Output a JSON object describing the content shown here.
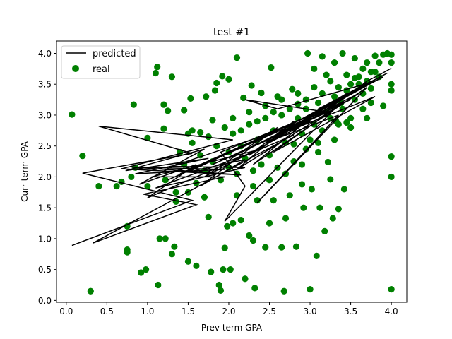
{
  "chart_data": {
    "type": "scatter",
    "title": "test #1",
    "xlabel": "Prev term GPA",
    "ylabel": "Curr term GPA",
    "xlim": [
      -0.12,
      4.19
    ],
    "ylim": [
      -0.03,
      4.2
    ],
    "xticks": [
      "0.0",
      "0.5",
      "1.0",
      "1.5",
      "2.0",
      "2.5",
      "3.0",
      "3.5",
      "4.0"
    ],
    "yticks": [
      "0.0",
      "0.5",
      "1.0",
      "1.5",
      "2.0",
      "2.5",
      "3.0",
      "3.5",
      "4.0"
    ],
    "legend": {
      "position": "upper left",
      "entries": [
        "predicted",
        "real"
      ]
    },
    "colors": {
      "predicted": "#000000",
      "real": "#008000"
    },
    "series": [
      {
        "name": "predicted",
        "type": "line",
        "points": [
          [
            0.07,
            0.89
          ],
          [
            1.55,
            1.62
          ],
          [
            0.2,
            2.06
          ],
          [
            1.55,
            2.38
          ],
          [
            0.4,
            2.82
          ],
          [
            2.05,
            2.6
          ],
          [
            0.68,
            2.13
          ],
          [
            2.15,
            2.03
          ],
          [
            0.8,
            2.16
          ],
          [
            1.95,
            2.12
          ],
          [
            0.85,
            2.05
          ],
          [
            1.75,
            2.3
          ],
          [
            0.73,
            2.1
          ],
          [
            1.7,
            2.45
          ],
          [
            0.9,
            1.88
          ],
          [
            1.6,
            2.2
          ],
          [
            1.0,
            1.66
          ],
          [
            2.8,
            2.68
          ],
          [
            0.33,
            0.93
          ],
          [
            1.6,
            1.55
          ],
          [
            0.95,
            1.72
          ],
          [
            1.95,
            2.0
          ],
          [
            1.05,
            2.0
          ],
          [
            2.4,
            2.45
          ],
          [
            1.1,
            1.82
          ],
          [
            2.2,
            2.15
          ],
          [
            1.3,
            2.17
          ],
          [
            2.5,
            2.7
          ],
          [
            1.25,
            1.95
          ],
          [
            3.1,
            3.02
          ],
          [
            1.4,
            2.05
          ],
          [
            3.2,
            3.12
          ],
          [
            1.5,
            2.08
          ],
          [
            2.2,
            2.28
          ],
          [
            1.65,
            1.85
          ],
          [
            2.6,
            2.8
          ],
          [
            1.7,
            2.0
          ],
          [
            3.0,
            2.9
          ],
          [
            1.8,
            2.2
          ],
          [
            3.3,
            3.1
          ],
          [
            1.95,
            1.28
          ],
          [
            2.2,
            1.85
          ],
          [
            1.9,
            2.4
          ],
          [
            3.5,
            3.25
          ],
          [
            2.0,
            2.3
          ],
          [
            3.6,
            3.35
          ],
          [
            2.1,
            2.12
          ],
          [
            2.8,
            2.9
          ],
          [
            2.25,
            2.35
          ],
          [
            3.05,
            3.0
          ],
          [
            2.3,
            2.2
          ],
          [
            3.7,
            3.45
          ],
          [
            2.35,
            1.58
          ],
          [
            3.35,
            3.0
          ],
          [
            2.45,
            2.55
          ],
          [
            3.4,
            3.2
          ],
          [
            2.55,
            2.4
          ],
          [
            3.8,
            3.3
          ],
          [
            2.5,
            2.62
          ],
          [
            3.9,
            3.62
          ],
          [
            2.7,
            2.8
          ],
          [
            3.55,
            3.4
          ],
          [
            2.8,
            2.75
          ],
          [
            3.75,
            3.55
          ],
          [
            2.95,
            2.95
          ],
          [
            3.45,
            3.35
          ],
          [
            3.0,
            3.0
          ],
          [
            3.95,
            3.68
          ],
          [
            3.1,
            3.1
          ],
          [
            3.8,
            3.55
          ],
          [
            2.6,
            3.1
          ],
          [
            2.2,
            3.25
          ],
          [
            3.2,
            3.05
          ],
          [
            3.3,
            3.2
          ],
          [
            3.4,
            3.3
          ],
          [
            3.6,
            3.45
          ],
          [
            3.7,
            3.55
          ],
          [
            3.85,
            3.65
          ],
          [
            4.0,
            3.76
          ]
        ]
      },
      {
        "name": "real",
        "type": "scatter",
        "points": [
          [
            0.07,
            3.01
          ],
          [
            0.2,
            2.34
          ],
          [
            0.3,
            0.15
          ],
          [
            0.4,
            1.85
          ],
          [
            0.62,
            1.85
          ],
          [
            0.68,
            1.92
          ],
          [
            0.75,
            0.82
          ],
          [
            0.75,
            0.78
          ],
          [
            0.75,
            1.2
          ],
          [
            0.8,
            2.0
          ],
          [
            0.83,
            3.17
          ],
          [
            0.85,
            2.15
          ],
          [
            0.92,
            0.45
          ],
          [
            0.98,
            0.5
          ],
          [
            1.0,
            1.85
          ],
          [
            1.0,
            2.63
          ],
          [
            1.1,
            3.68
          ],
          [
            1.12,
            3.78
          ],
          [
            1.13,
            0.25
          ],
          [
            1.15,
            1.0
          ],
          [
            1.2,
            3.17
          ],
          [
            1.22,
            1.0
          ],
          [
            1.2,
            2.78
          ],
          [
            1.22,
            1.95
          ],
          [
            1.25,
            3.07
          ],
          [
            1.3,
            3.62
          ],
          [
            1.3,
            0.75
          ],
          [
            1.33,
            0.87
          ],
          [
            1.35,
            1.75
          ],
          [
            1.4,
            2.4
          ],
          [
            1.45,
            3.08
          ],
          [
            1.5,
            0.63
          ],
          [
            1.53,
            3.27
          ],
          [
            1.5,
            2.7
          ],
          [
            1.55,
            2.75
          ],
          [
            1.6,
            0.56
          ],
          [
            1.65,
            2.72
          ],
          [
            1.7,
            1.67
          ],
          [
            1.72,
            3.3
          ],
          [
            1.75,
            1.35
          ],
          [
            1.78,
            0.46
          ],
          [
            1.8,
            2.92
          ],
          [
            1.83,
            3.4
          ],
          [
            1.85,
            3.52
          ],
          [
            1.88,
            0.25
          ],
          [
            1.9,
            0.16
          ],
          [
            1.92,
            3.63
          ],
          [
            1.93,
            0.5
          ],
          [
            1.95,
            0.85
          ],
          [
            1.98,
            1.2
          ],
          [
            2.0,
            3.58
          ],
          [
            2.0,
            2.15
          ],
          [
            2.02,
            0.5
          ],
          [
            2.05,
            1.25
          ],
          [
            2.1,
            3.93
          ],
          [
            2.15,
            1.3
          ],
          [
            2.18,
            3.28
          ],
          [
            2.2,
            0.35
          ],
          [
            2.25,
            1.05
          ],
          [
            2.28,
            3.48
          ],
          [
            2.3,
            0.97
          ],
          [
            2.32,
            0.2
          ],
          [
            2.35,
            1.62
          ],
          [
            2.4,
            3.36
          ],
          [
            2.45,
            0.86
          ],
          [
            2.5,
            1.25
          ],
          [
            2.52,
            3.77
          ],
          [
            2.55,
            1.62
          ],
          [
            2.6,
            3.3
          ],
          [
            2.65,
            0.86
          ],
          [
            2.68,
            0.15
          ],
          [
            2.7,
            1.33
          ],
          [
            2.75,
            1.7
          ],
          [
            2.78,
            3.42
          ],
          [
            2.8,
            2.53
          ],
          [
            2.83,
            0.87
          ],
          [
            2.85,
            3.18
          ],
          [
            2.9,
            1.88
          ],
          [
            2.92,
            1.5
          ],
          [
            2.95,
            2.45
          ],
          [
            2.97,
            4.0
          ],
          [
            3.0,
            0.18
          ],
          [
            3.02,
            1.8
          ],
          [
            3.05,
            3.75
          ],
          [
            3.08,
            0.72
          ],
          [
            3.1,
            2.55
          ],
          [
            3.12,
            1.5
          ],
          [
            3.15,
            3.95
          ],
          [
            3.18,
            1.12
          ],
          [
            3.2,
            3.65
          ],
          [
            3.22,
            2.24
          ],
          [
            3.25,
            1.96
          ],
          [
            3.28,
            1.33
          ],
          [
            3.3,
            3.85
          ],
          [
            3.32,
            2.9
          ],
          [
            3.35,
            1.48
          ],
          [
            3.38,
            3.2
          ],
          [
            3.4,
            4.0
          ],
          [
            3.42,
            1.8
          ],
          [
            3.45,
            2.88
          ],
          [
            3.5,
            3.5
          ],
          [
            3.55,
            3.92
          ],
          [
            3.6,
            3.62
          ],
          [
            3.65,
            3.35
          ],
          [
            3.7,
            3.85
          ],
          [
            3.75,
            3.43
          ],
          [
            3.8,
            3.96
          ],
          [
            3.85,
            3.62
          ],
          [
            3.9,
            3.98
          ],
          [
            3.95,
            4.0
          ],
          [
            4.0,
            3.98
          ],
          [
            4.0,
            3.85
          ],
          [
            4.0,
            3.5
          ],
          [
            4.0,
            3.4
          ],
          [
            4.0,
            2.33
          ],
          [
            4.0,
            2.0
          ],
          [
            4.0,
            0.18
          ],
          [
            1.6,
            1.9
          ],
          [
            1.7,
            2.1
          ],
          [
            1.8,
            2.25
          ],
          [
            1.9,
            1.95
          ],
          [
            2.0,
            2.4
          ],
          [
            2.05,
            2.7
          ],
          [
            2.1,
            2.05
          ],
          [
            2.15,
            2.5
          ],
          [
            2.2,
            2.3
          ],
          [
            2.25,
            2.85
          ],
          [
            2.3,
            2.1
          ],
          [
            2.35,
            2.6
          ],
          [
            2.4,
            2.2
          ],
          [
            2.45,
            2.95
          ],
          [
            2.5,
            2.35
          ],
          [
            2.55,
            2.75
          ],
          [
            2.6,
            2.15
          ],
          [
            2.65,
            3.0
          ],
          [
            2.7,
            2.55
          ],
          [
            2.75,
            2.8
          ],
          [
            2.8,
            2.25
          ],
          [
            2.85,
            2.95
          ],
          [
            2.9,
            2.7
          ],
          [
            2.95,
            3.1
          ],
          [
            3.0,
            2.6
          ],
          [
            3.05,
            2.85
          ],
          [
            3.1,
            3.2
          ],
          [
            3.15,
            2.75
          ],
          [
            3.2,
            3.05
          ],
          [
            3.25,
            2.95
          ],
          [
            3.3,
            3.3
          ],
          [
            3.35,
            2.85
          ],
          [
            3.4,
            3.1
          ],
          [
            3.45,
            3.4
          ],
          [
            3.5,
            2.95
          ],
          [
            3.55,
            3.25
          ],
          [
            3.6,
            3.5
          ],
          [
            3.65,
            3.1
          ],
          [
            3.7,
            3.55
          ],
          [
            3.75,
            3.2
          ],
          [
            3.8,
            3.7
          ],
          [
            1.45,
            2.2
          ],
          [
            1.55,
            2.55
          ],
          [
            1.65,
            2.35
          ],
          [
            1.75,
            2.65
          ],
          [
            1.85,
            2.5
          ],
          [
            1.95,
            2.8
          ],
          [
            2.05,
            2.95
          ],
          [
            2.15,
            2.75
          ],
          [
            2.25,
            3.05
          ],
          [
            2.35,
            2.9
          ],
          [
            2.45,
            3.15
          ],
          [
            2.55,
            3.05
          ],
          [
            2.65,
            3.25
          ],
          [
            2.75,
            3.1
          ],
          [
            2.85,
            3.35
          ],
          [
            2.95,
            3.25
          ],
          [
            3.05,
            3.45
          ],
          [
            3.15,
            3.35
          ],
          [
            3.25,
            3.55
          ],
          [
            3.35,
            3.45
          ],
          [
            3.45,
            3.65
          ],
          [
            3.55,
            3.6
          ],
          [
            3.65,
            3.75
          ],
          [
            3.75,
            3.7
          ],
          [
            3.85,
            3.85
          ],
          [
            1.35,
            1.6
          ],
          [
            1.5,
            1.75
          ],
          [
            2.1,
            1.7
          ],
          [
            2.3,
            1.85
          ],
          [
            2.5,
            1.95
          ],
          [
            2.7,
            2.05
          ],
          [
            2.9,
            2.2
          ],
          [
            3.1,
            2.4
          ],
          [
            3.3,
            2.6
          ],
          [
            3.5,
            2.8
          ],
          [
            3.7,
            2.95
          ],
          [
            3.9,
            3.15
          ]
        ]
      }
    ]
  }
}
